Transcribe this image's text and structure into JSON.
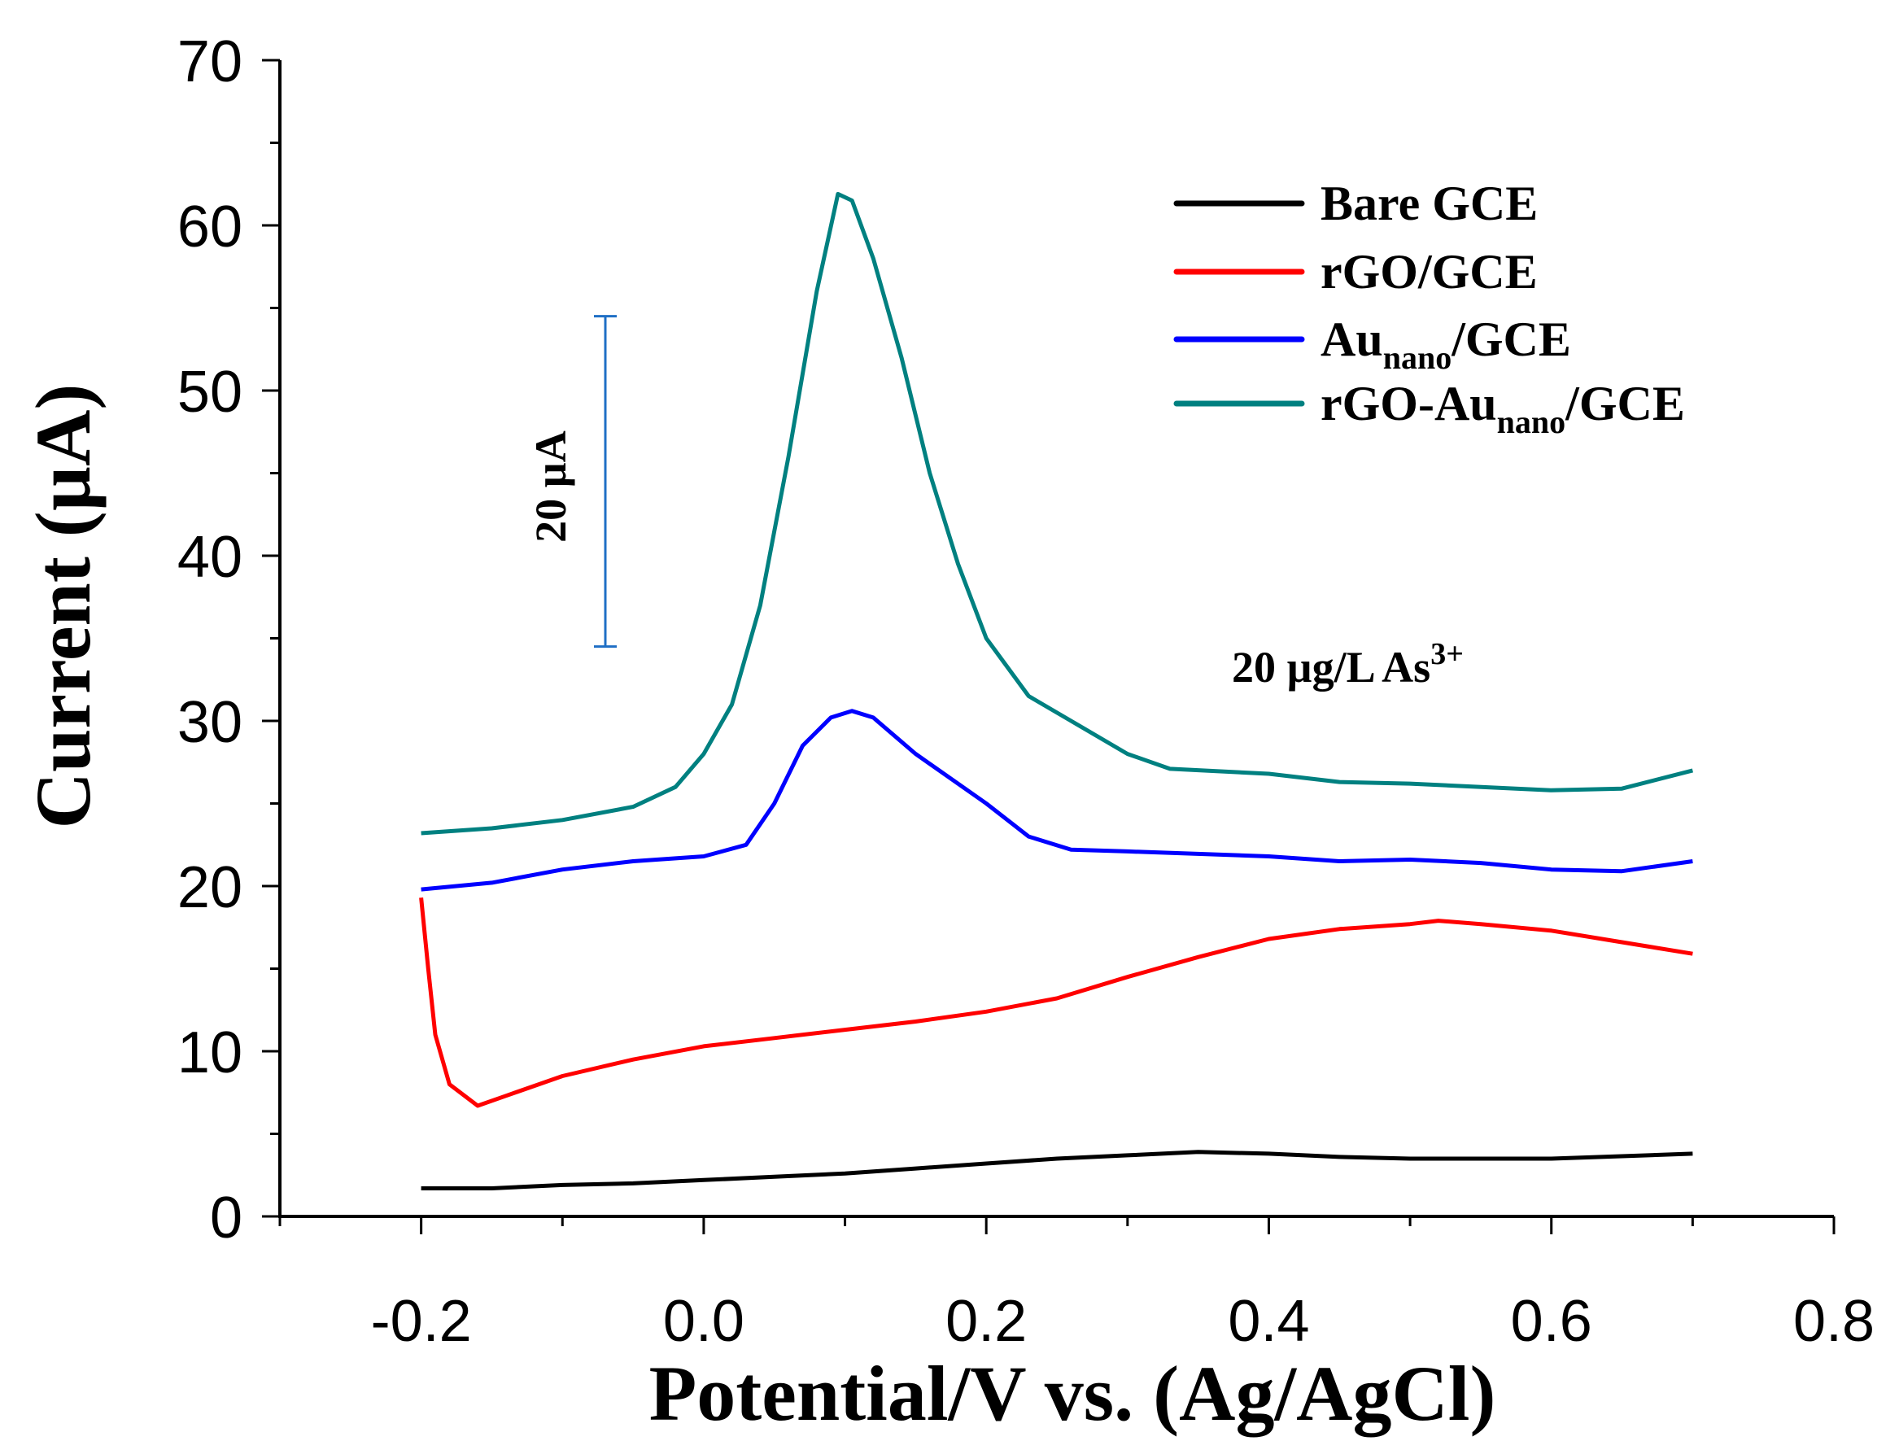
{
  "chart_data": {
    "type": "line",
    "xlabel": "Potential/V vs. (Ag/AgCl)",
    "ylabel": "Current (µA)",
    "xlim": [
      -0.3,
      0.8
    ],
    "ylim": [
      0,
      70
    ],
    "xticks": [
      "-0.2",
      "0.0",
      "0.2",
      "0.4",
      "0.6",
      "0.8"
    ],
    "xtick_values": [
      -0.2,
      0.0,
      0.2,
      0.4,
      0.6,
      0.8
    ],
    "yticks": [
      "0",
      "10",
      "20",
      "30",
      "40",
      "50",
      "60",
      "70"
    ],
    "ytick_values": [
      0,
      10,
      20,
      30,
      40,
      50,
      60,
      70
    ],
    "grid": false,
    "legend_position": "top-right",
    "annotation": {
      "main": "20 µg/L As",
      "sup": "3+"
    },
    "scale_bar": {
      "label": "20 µA",
      "value": 20,
      "from": 34.5,
      "to": 54.5,
      "x": -0.07,
      "color": "#1f6fc5"
    },
    "series": [
      {
        "name": "Bare GCE",
        "label": {
          "main": "Bare GCE",
          "sub": "",
          "rest": ""
        },
        "color": "#000000",
        "x": [
          -0.2,
          -0.15,
          -0.1,
          -0.05,
          0,
          0.05,
          0.1,
          0.15,
          0.2,
          0.25,
          0.3,
          0.35,
          0.4,
          0.45,
          0.5,
          0.6,
          0.7
        ],
        "y": [
          1.7,
          1.7,
          1.9,
          2.0,
          2.2,
          2.4,
          2.6,
          2.9,
          3.2,
          3.5,
          3.7,
          3.9,
          3.8,
          3.6,
          3.5,
          3.5,
          3.8
        ]
      },
      {
        "name": "rGO/GCE",
        "label": {
          "main": "rGO/GCE",
          "sub": "",
          "rest": ""
        },
        "color": "#ff0000",
        "x": [
          -0.2,
          -0.195,
          -0.19,
          -0.18,
          -0.16,
          -0.14,
          -0.1,
          -0.05,
          0,
          0.05,
          0.1,
          0.15,
          0.2,
          0.25,
          0.3,
          0.35,
          0.4,
          0.45,
          0.5,
          0.52,
          0.55,
          0.6,
          0.65,
          0.7
        ],
        "y": [
          19.3,
          15,
          11,
          8,
          6.7,
          7.3,
          8.5,
          9.5,
          10.3,
          10.8,
          11.3,
          11.8,
          12.4,
          13.2,
          14.5,
          15.7,
          16.8,
          17.4,
          17.7,
          17.9,
          17.7,
          17.3,
          16.6,
          15.9
        ]
      },
      {
        "name": "Aunano/GCE",
        "label": {
          "main": "Au",
          "sub": "nano",
          "rest": "/GCE"
        },
        "color": "#0000ff",
        "x": [
          -0.2,
          -0.15,
          -0.1,
          -0.05,
          0,
          0.03,
          0.05,
          0.07,
          0.09,
          0.105,
          0.12,
          0.15,
          0.2,
          0.23,
          0.26,
          0.3,
          0.4,
          0.45,
          0.5,
          0.55,
          0.6,
          0.65,
          0.7
        ],
        "y": [
          19.8,
          20.2,
          21.0,
          21.5,
          21.8,
          22.5,
          25,
          28.5,
          30.2,
          30.6,
          30.2,
          28,
          25,
          23,
          22.2,
          22.1,
          21.8,
          21.5,
          21.6,
          21.4,
          21.0,
          20.9,
          21.5
        ]
      },
      {
        "name": "rGO-Aunano/GCE",
        "label": {
          "main": "rGO-Au",
          "sub": "nano",
          "rest": "/GCE"
        },
        "color": "#008080",
        "x": [
          -0.2,
          -0.15,
          -0.1,
          -0.05,
          -0.02,
          0,
          0.02,
          0.04,
          0.06,
          0.08,
          0.095,
          0.105,
          0.12,
          0.14,
          0.16,
          0.18,
          0.2,
          0.23,
          0.26,
          0.3,
          0.33,
          0.4,
          0.45,
          0.5,
          0.6,
          0.65,
          0.7
        ],
        "y": [
          23.2,
          23.5,
          24,
          24.8,
          26,
          28,
          31,
          37,
          46,
          56,
          61.9,
          61.5,
          58,
          52,
          45,
          39.5,
          35,
          31.5,
          30,
          28,
          27.1,
          26.8,
          26.3,
          26.2,
          25.8,
          25.9,
          27
        ]
      }
    ]
  }
}
